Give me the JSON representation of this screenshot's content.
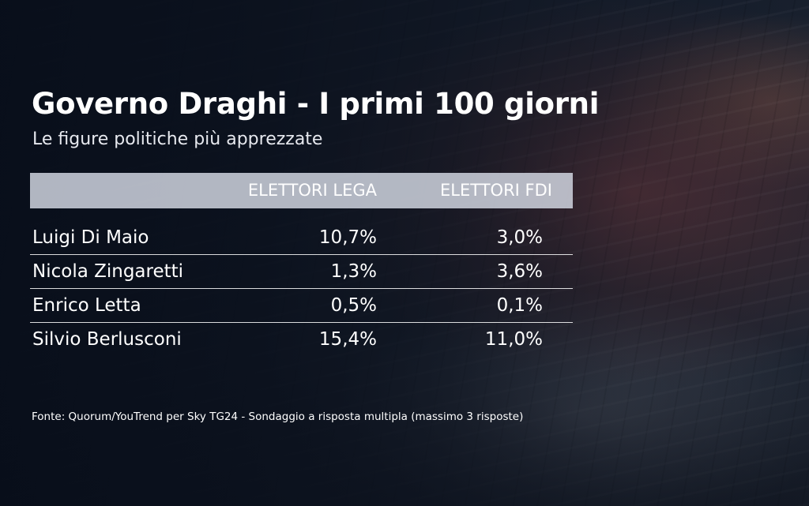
{
  "header": {
    "title": "Governo Draghi - I primi 100 giorni",
    "subtitle": "Le figure politiche più apprezzate"
  },
  "chart_data": {
    "type": "table",
    "title": "Governo Draghi - I primi 100 giorni",
    "subtitle": "Le figure politiche più apprezzate",
    "columns": [
      "ELETTORI LEGA",
      "ELETTORI FDI"
    ],
    "rows": [
      {
        "name": "Luigi Di Maio",
        "values": [
          "10,7%",
          "3,0%"
        ]
      },
      {
        "name": "Nicola Zingaretti",
        "values": [
          "1,3%",
          "3,6%"
        ]
      },
      {
        "name": "Enrico Letta",
        "values": [
          "0,5%",
          "0,1%"
        ]
      },
      {
        "name": "Silvio Berlusconi",
        "values": [
          "15,4%",
          "11,0%"
        ]
      }
    ],
    "numeric": [
      {
        "name": "Luigi Di Maio",
        "lega": 10.7,
        "fdi": 3.0
      },
      {
        "name": "Nicola Zingaretti",
        "lega": 1.3,
        "fdi": 3.6
      },
      {
        "name": "Enrico Letta",
        "lega": 0.5,
        "fdi": 0.1
      },
      {
        "name": "Silvio Berlusconi",
        "lega": 15.4,
        "fdi": 11.0
      }
    ]
  },
  "footer": {
    "source": "Fonte: Quorum/YouTrend per Sky TG24 - Sondaggio a risposta multipla (massimo 3 risposte)"
  },
  "colors": {
    "text": "#ffffff",
    "header_band": "#d7dce6",
    "background": "#0d1624"
  }
}
